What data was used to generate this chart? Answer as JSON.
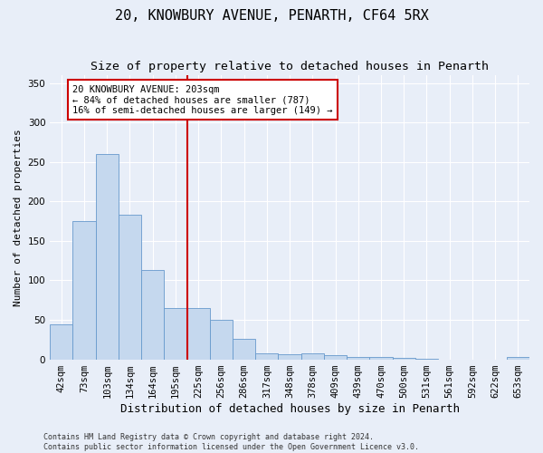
{
  "title": "20, KNOWBURY AVENUE, PENARTH, CF64 5RX",
  "subtitle": "Size of property relative to detached houses in Penarth",
  "xlabel": "Distribution of detached houses by size in Penarth",
  "ylabel": "Number of detached properties",
  "categories": [
    "42sqm",
    "73sqm",
    "103sqm",
    "134sqm",
    "164sqm",
    "195sqm",
    "225sqm",
    "256sqm",
    "286sqm",
    "317sqm",
    "348sqm",
    "378sqm",
    "409sqm",
    "439sqm",
    "470sqm",
    "500sqm",
    "531sqm",
    "561sqm",
    "592sqm",
    "622sqm",
    "653sqm"
  ],
  "values": [
    44,
    175,
    260,
    183,
    113,
    65,
    65,
    50,
    26,
    8,
    6,
    8,
    5,
    3,
    3,
    2,
    1,
    0,
    0,
    0,
    3
  ],
  "bar_color": "#c5d8ee",
  "bar_edge_color": "#6699cc",
  "vline_color": "#cc0000",
  "annotation_text": "20 KNOWBURY AVENUE: 203sqm\n← 84% of detached houses are smaller (787)\n16% of semi-detached houses are larger (149) →",
  "annotation_box_color": "#ffffff",
  "annotation_box_edge_color": "#cc0000",
  "bg_color": "#e8eef8",
  "plot_bg_color": "#e8eef8",
  "footer_line1": "Contains HM Land Registry data © Crown copyright and database right 2024.",
  "footer_line2": "Contains public sector information licensed under the Open Government Licence v3.0.",
  "ylim": [
    0,
    360
  ],
  "title_fontsize": 11,
  "subtitle_fontsize": 9.5,
  "tick_fontsize": 7.5,
  "ylabel_fontsize": 8,
  "xlabel_fontsize": 9,
  "footer_fontsize": 6,
  "annotation_fontsize": 7.5,
  "vline_x": 5.5
}
